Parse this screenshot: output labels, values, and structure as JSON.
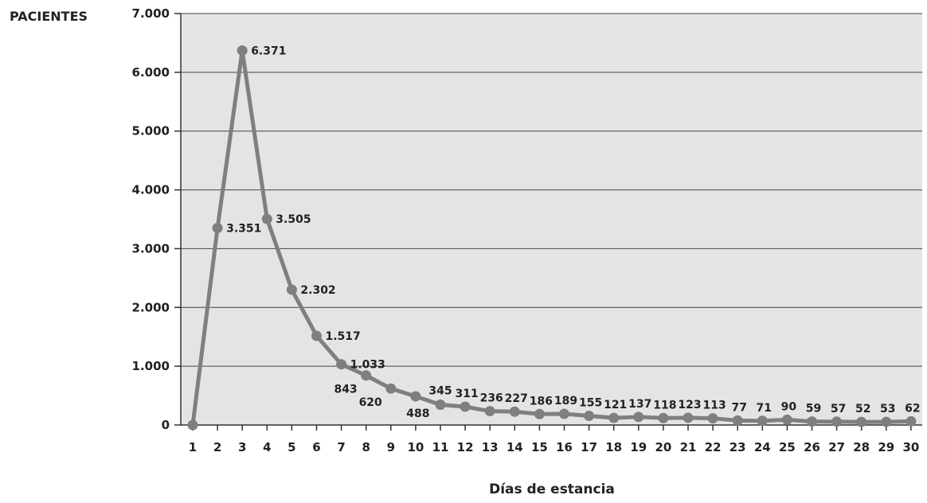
{
  "chart_data": {
    "type": "line",
    "ylabel": "PACIENTES",
    "xlabel": "Días de estancia",
    "ylim": [
      0,
      7000
    ],
    "yticks": [
      "0",
      "1.000",
      "2.000",
      "3.000",
      "4.000",
      "5.000",
      "6.000",
      "7.000"
    ],
    "ytick_values": [
      0,
      1000,
      2000,
      3000,
      4000,
      5000,
      6000,
      7000
    ],
    "grid": true,
    "colors": {
      "line": "#7f7f7f",
      "plot_bg": "#e4e4e6",
      "grid": "#444444"
    },
    "x": [
      1,
      2,
      3,
      4,
      5,
      6,
      7,
      8,
      9,
      10,
      11,
      12,
      13,
      14,
      15,
      16,
      17,
      18,
      19,
      20,
      21,
      22,
      23,
      24,
      25,
      26,
      27,
      28,
      29,
      30
    ],
    "values": [
      0,
      3351,
      6371,
      3505,
      2302,
      1517,
      1033,
      843,
      620,
      488,
      345,
      311,
      236,
      227,
      186,
      189,
      155,
      121,
      137,
      118,
      123,
      113,
      77,
      71,
      90,
      59,
      57,
      52,
      53,
      62
    ],
    "data_labels": [
      "",
      "3.351",
      "6.371",
      "3.505",
      "2.302",
      "1.517",
      "1.033",
      "843",
      "620",
      "488",
      "345",
      "311",
      "236",
      "227",
      "186",
      "189",
      "155",
      "121",
      "137",
      "118",
      "123",
      "113",
      "77",
      "71",
      "90",
      "59",
      "57",
      "52",
      "53",
      "62"
    ]
  }
}
